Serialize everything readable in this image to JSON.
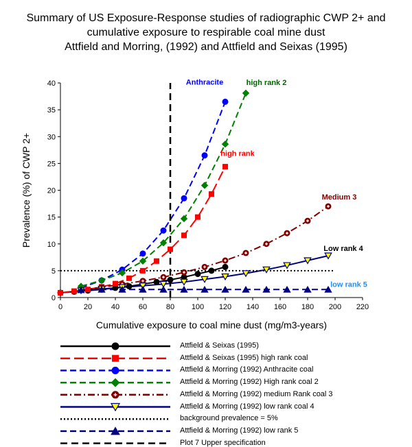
{
  "title_lines": [
    "Summary of US Exposure-Response studies of radiographic CWP 2+ and",
    "cumulative exposure to respirable coal mine dust",
    "Attfield and Morring, (1992) and Attfield and Seixas (1995)"
  ],
  "chart_data": {
    "type": "line",
    "title": "Summary of US Exposure-Response studies of radiographic CWP 2+ and cumulative exposure to respirable coal mine dust Attfield and Morring, (1992) and Attfield and Seixas (1995)",
    "xlabel": "Cumulative exposure to coal mine dust (mg/m3-years)",
    "ylabel": "Prevalence (%) of CWP 2+",
    "xlim": [
      0,
      220
    ],
    "ylim": [
      0,
      40
    ],
    "xticks": [
      0,
      20,
      40,
      60,
      80,
      100,
      120,
      140,
      160,
      180,
      200,
      220
    ],
    "yticks": [
      0,
      5,
      10,
      15,
      20,
      25,
      30,
      35,
      40
    ],
    "grid": false,
    "series": [
      {
        "name": "Attfield & Seixas (1995)",
        "color": "#000000",
        "dash": "solid",
        "marker": "circle",
        "x": [
          0,
          10,
          20,
          30,
          40,
          50,
          60,
          70,
          80,
          90,
          100,
          110,
          120
        ],
        "y": [
          0.9,
          1.1,
          1.3,
          1.5,
          1.8,
          2.1,
          2.5,
          2.9,
          3.3,
          3.8,
          4.4,
          5.0,
          5.7
        ]
      },
      {
        "name": "Attfield & Seixas (1995) high rank coal",
        "color": "#ff0000",
        "dash": "longdash",
        "marker": "square",
        "x": [
          0,
          10,
          20,
          30,
          40,
          50,
          60,
          70,
          80,
          90,
          100,
          110,
          120
        ],
        "y": [
          0.9,
          1.2,
          1.5,
          2.0,
          2.6,
          3.6,
          5.0,
          6.8,
          9.0,
          11.6,
          15.0,
          19.3,
          24.4
        ]
      },
      {
        "name": "Attfield & Morring (1992)  Anthracite coal",
        "color": "#0000ff",
        "dash": "dash",
        "marker": "circle",
        "x": [
          15,
          30,
          45,
          60,
          75,
          90,
          105,
          120
        ],
        "y": [
          1.8,
          3.2,
          5.2,
          8.2,
          12.5,
          18.5,
          26.5,
          36.5
        ]
      },
      {
        "name": "Attfield & Morring (1992) High rank coal 2",
        "color": "#008000",
        "dash": "dash",
        "marker": "diamond",
        "x": [
          15,
          30,
          45,
          60,
          75,
          90,
          105,
          120,
          135
        ],
        "y": [
          2.1,
          3.2,
          4.6,
          6.8,
          10.2,
          14.7,
          20.9,
          28.6,
          38.1
        ]
      },
      {
        "name": "Attfield & Morring (1992)  medium Rank coal 3",
        "color": "#800000",
        "dash": "dashdot",
        "marker": "circle-cross",
        "x": [
          15,
          30,
          45,
          60,
          75,
          90,
          105,
          120,
          135,
          150,
          165,
          180,
          195
        ],
        "y": [
          1.4,
          1.9,
          2.5,
          3.1,
          3.8,
          4.7,
          5.7,
          6.9,
          8.3,
          10.0,
          12.0,
          14.3,
          17.0
        ]
      },
      {
        "name": "Attfield & Morring (1992)   low rank coal 4",
        "color": "#000080",
        "dash": "solid",
        "marker": "triangle-down",
        "x": [
          15,
          30,
          45,
          60,
          75,
          90,
          105,
          120,
          135,
          150,
          165,
          180,
          195
        ],
        "y": [
          1.3,
          1.6,
          1.9,
          2.2,
          2.5,
          2.9,
          3.4,
          3.9,
          4.5,
          5.2,
          6.0,
          6.9,
          7.8
        ]
      },
      {
        "name": "background prevalence = 5%",
        "color": "#000000",
        "dash": "dot",
        "marker": "none",
        "x": [
          0,
          200
        ],
        "y": [
          5,
          5
        ]
      },
      {
        "name": "Attfield & Morring (1992) low rank 5",
        "color": "#000080",
        "dash": "dash",
        "marker": "triangle-up",
        "x": [
          15,
          30,
          45,
          60,
          75,
          90,
          105,
          120,
          135,
          150,
          165,
          180,
          195
        ],
        "y": [
          1.4,
          1.5,
          1.5,
          1.5,
          1.5,
          1.5,
          1.5,
          1.5,
          1.5,
          1.5,
          1.5,
          1.5,
          1.5
        ]
      },
      {
        "name": "Plot 7 Upper specification",
        "color": "#000000",
        "dash": "heavydash",
        "marker": "none",
        "x": [
          80,
          80
        ],
        "y": [
          0,
          40
        ]
      }
    ],
    "annotations": [
      {
        "text": "Anthracite",
        "color": "#0000ff",
        "x": 105,
        "y": 39.7
      },
      {
        "text": "high rank 2",
        "color": "#006400",
        "x": 150,
        "y": 39.6
      },
      {
        "text": "high rank",
        "color": "#ff0000",
        "x": 129,
        "y": 26.4
      },
      {
        "text": "Medium 3",
        "color": "#800000",
        "x": 203,
        "y": 18.3
      },
      {
        "text": "Low rank 4",
        "color": "#000000",
        "x": 206,
        "y": 8.7
      },
      {
        "text": "low rank 5",
        "color": "#1e90ff",
        "x": 210,
        "y": 2.0
      }
    ],
    "legend_position": "bottom"
  }
}
